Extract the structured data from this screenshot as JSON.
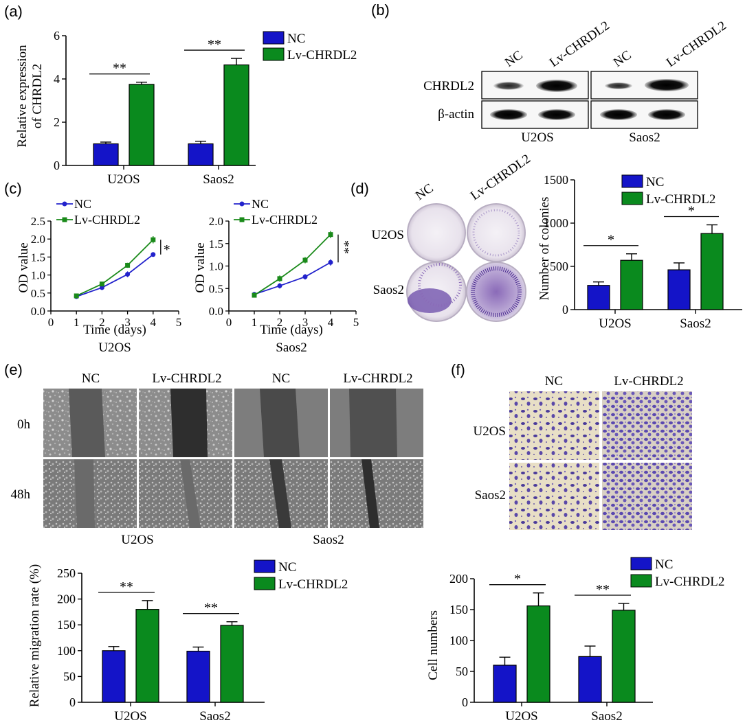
{
  "colors": {
    "nc": "#1414c8",
    "lv": "#0a8a1e",
    "nc_line": "#2222cc",
    "lv_line": "#1a8a1a"
  },
  "panels": {
    "a": {
      "letter": "(a)",
      "legend": [
        "NC",
        "Lv-CHRDL2"
      ],
      "ylabel_line1": "Relative expression",
      "ylabel_line2": "of CHRDL2",
      "yticks": [
        "0",
        "2",
        "4",
        "6"
      ],
      "categories": [
        "U2OS",
        "Saos2"
      ],
      "sig": [
        "**",
        "**"
      ]
    },
    "b": {
      "letter": "(b)",
      "lane_labels": [
        "NC",
        "Lv-CHRDL2",
        "NC",
        "Lv-CHRDL2"
      ],
      "row_labels": [
        "CHRDL2",
        "β-actin"
      ],
      "group_labels": [
        "U2OS",
        "Saos2"
      ]
    },
    "c": {
      "letter": "(c)",
      "legend": [
        "NC",
        "Lv-CHRDL2"
      ],
      "ylabel": "OD value",
      "xlabel": "Time (days)",
      "left_yticks": [
        "0.0",
        "0.5",
        "1.0",
        "1.5",
        "2.0",
        "2.5"
      ],
      "right_yticks": [
        "0.0",
        "0.5",
        "1.0",
        "1.5",
        "2.0"
      ],
      "xticks": [
        "0",
        "1",
        "2",
        "3",
        "4",
        "5"
      ],
      "left_title": "U2OS",
      "right_title": "Saos2",
      "left_sig": "*",
      "right_sig": "**"
    },
    "d": {
      "letter": "(d)",
      "col_labels": [
        "NC",
        "Lv-CHRDL2"
      ],
      "row_labels": [
        "U2OS",
        "Saos2"
      ],
      "legend": [
        "NC",
        "Lv-CHRDL2"
      ],
      "ylabel": "Number of colonies",
      "yticks": [
        "0",
        "500",
        "1000",
        "1500"
      ],
      "categories": [
        "U2OS",
        "Saos2"
      ],
      "sig": [
        "*",
        "*"
      ]
    },
    "e": {
      "letter": "(e)",
      "col_labels": [
        "NC",
        "Lv-CHRDL2",
        "NC",
        "Lv-CHRDL2"
      ],
      "row_labels": [
        "0h",
        "48h"
      ],
      "group_labels": [
        "U2OS",
        "Saos2"
      ],
      "legend": [
        "NC",
        "Lv-CHRDL2"
      ],
      "ylabel": "Relative migration rate (%)",
      "yticks": [
        "0",
        "50",
        "100",
        "150",
        "200",
        "250"
      ],
      "categories": [
        "U2OS",
        "Saos2"
      ],
      "sig": [
        "**",
        "**"
      ]
    },
    "f": {
      "letter": "(f)",
      "col_labels": [
        "NC",
        "Lv-CHRDL2"
      ],
      "row_labels": [
        "U2OS",
        "Saos2"
      ],
      "legend": [
        "NC",
        "Lv-CHRDL2"
      ],
      "ylabel": "Cell numbers",
      "yticks": [
        "0",
        "50",
        "100",
        "150",
        "200"
      ],
      "categories": [
        "U2OS",
        "Saos2"
      ],
      "sig": [
        "*",
        "**"
      ]
    }
  },
  "chart_data": [
    {
      "panel": "a",
      "type": "bar",
      "categories": [
        "U2OS",
        "Saos2"
      ],
      "series": [
        {
          "name": "NC",
          "values": [
            1.0,
            1.0
          ],
          "errors": [
            0.08,
            0.12
          ]
        },
        {
          "name": "Lv-CHRDL2",
          "values": [
            3.75,
            4.65
          ],
          "errors": [
            0.1,
            0.3
          ]
        }
      ],
      "ylabel": "Relative expression of CHRDL2",
      "ylim": [
        0,
        6
      ]
    },
    {
      "panel": "c-U2OS",
      "type": "line",
      "x": [
        1,
        2,
        3,
        4
      ],
      "series": [
        {
          "name": "NC",
          "values": [
            0.4,
            0.65,
            1.02,
            1.57
          ],
          "errors": [
            0.03,
            0.05,
            0.08,
            0.06
          ]
        },
        {
          "name": "Lv-CHRDL2",
          "values": [
            0.42,
            0.75,
            1.27,
            1.98
          ],
          "errors": [
            0.03,
            0.06,
            0.07,
            0.1
          ]
        }
      ],
      "xlabel": "Time (days)",
      "ylabel": "OD value",
      "xlim": [
        0,
        5
      ],
      "ylim": [
        0,
        2.5
      ]
    },
    {
      "panel": "c-Saos2",
      "type": "line",
      "x": [
        1,
        2,
        3,
        4
      ],
      "series": [
        {
          "name": "NC",
          "values": [
            0.37,
            0.56,
            0.76,
            1.08
          ],
          "errors": [
            0.05,
            0.06,
            0.06,
            0.07
          ]
        },
        {
          "name": "Lv-CHRDL2",
          "values": [
            0.35,
            0.72,
            1.13,
            1.7
          ],
          "errors": [
            0.05,
            0.07,
            0.07,
            0.08
          ]
        }
      ],
      "xlabel": "Time (days)",
      "ylabel": "OD value",
      "xlim": [
        0,
        5
      ],
      "ylim": [
        0,
        2.0
      ]
    },
    {
      "panel": "d",
      "type": "bar",
      "categories": [
        "U2OS",
        "Saos2"
      ],
      "series": [
        {
          "name": "NC",
          "values": [
            280,
            460
          ],
          "errors": [
            40,
            80
          ]
        },
        {
          "name": "Lv-CHRDL2",
          "values": [
            570,
            880
          ],
          "errors": [
            75,
            100
          ]
        }
      ],
      "ylabel": "Number of colonies",
      "ylim": [
        0,
        1500
      ]
    },
    {
      "panel": "e",
      "type": "bar",
      "categories": [
        "U2OS",
        "Saos2"
      ],
      "series": [
        {
          "name": "NC",
          "values": [
            100,
            99
          ],
          "errors": [
            8,
            8
          ]
        },
        {
          "name": "Lv-CHRDL2",
          "values": [
            180,
            149
          ],
          "errors": [
            17,
            7
          ]
        }
      ],
      "ylabel": "Relative migration rate (%)",
      "ylim": [
        0,
        250
      ]
    },
    {
      "panel": "f",
      "type": "bar",
      "categories": [
        "U2OS",
        "Saos2"
      ],
      "series": [
        {
          "name": "NC",
          "values": [
            60,
            74
          ],
          "errors": [
            13,
            17
          ]
        },
        {
          "name": "Lv-CHRDL2",
          "values": [
            156,
            149
          ],
          "errors": [
            21,
            11
          ]
        }
      ],
      "ylabel": "Cell numbers",
      "ylim": [
        0,
        200
      ]
    }
  ]
}
